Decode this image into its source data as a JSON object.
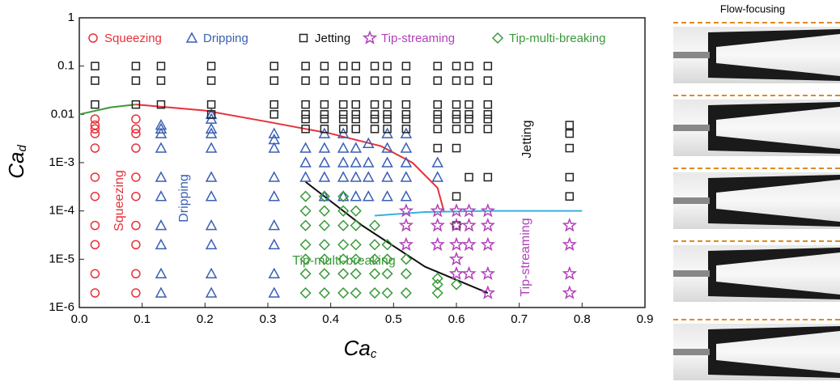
{
  "chart_data": {
    "type": "scatter",
    "log_y": true,
    "xlabel": "Ca",
    "xlabel_sub": "c",
    "ylabel": "Ca",
    "ylabel_sub": "d",
    "xlim": [
      0,
      0.9
    ],
    "ylim": [
      1e-06,
      1
    ],
    "xticks": [
      {
        "value": 0,
        "label": "0.0"
      },
      0.1,
      0.2,
      0.3,
      0.4,
      0.5,
      0.6,
      0.7,
      0.8,
      0.9
    ],
    "yticks": [
      {
        "value": 1e-06,
        "label": "1E-6"
      },
      {
        "value": 1e-05,
        "label": "1E-5"
      },
      {
        "value": 0.0001,
        "label": "1E-4"
      },
      {
        "value": 0.001,
        "label": "1E-3"
      },
      0.01,
      0.1,
      1
    ],
    "series": [
      {
        "name": "Squeezing",
        "color": "#e8313a",
        "marker": "circle",
        "x": [
          0.025,
          0.025,
          0.025,
          0.025,
          0.025,
          0.025,
          0.025,
          0.025,
          0.025,
          0.025,
          0.025,
          0.09,
          0.09,
          0.09,
          0.09,
          0.09,
          0.09,
          0.09,
          0.09,
          0.09,
          0.09
        ],
        "values": [
          0.008,
          0.006,
          0.005,
          0.004,
          0.002,
          0.0005,
          0.0002,
          5e-05,
          2e-05,
          5e-06,
          2e-06,
          0.008,
          0.005,
          0.004,
          0.002,
          0.0005,
          0.0002,
          5e-05,
          2e-05,
          5e-06,
          2e-06
        ]
      },
      {
        "name": "Dripping",
        "color": "#3a5fb5",
        "marker": "triangle",
        "x": [
          0.13,
          0.13,
          0.13,
          0.13,
          0.13,
          0.13,
          0.13,
          0.13,
          0.13,
          0.13,
          0.21,
          0.21,
          0.21,
          0.21,
          0.21,
          0.21,
          0.21,
          0.21,
          0.21,
          0.21,
          0.21,
          0.31,
          0.31,
          0.31,
          0.31,
          0.31,
          0.31,
          0.31,
          0.31,
          0.31,
          0.36,
          0.36,
          0.36,
          0.39,
          0.39,
          0.39,
          0.39,
          0.39,
          0.42,
          0.42,
          0.42,
          0.42,
          0.42,
          0.44,
          0.44,
          0.44,
          0.44,
          0.46,
          0.46,
          0.46,
          0.46,
          0.49,
          0.49,
          0.49,
          0.49,
          0.49,
          0.52,
          0.52,
          0.52,
          0.52,
          0.52,
          0.57,
          0.57
        ],
        "values": [
          0.006,
          0.005,
          0.004,
          0.002,
          0.0005,
          0.0002,
          5e-05,
          2e-05,
          5e-06,
          2e-06,
          0.01,
          0.008,
          0.005,
          0.004,
          0.002,
          0.0005,
          0.0002,
          5e-05,
          2e-05,
          5e-06,
          2e-06,
          0.004,
          0.003,
          0.002,
          0.0005,
          0.0002,
          5e-05,
          2e-05,
          5e-06,
          2e-06,
          0.002,
          0.001,
          0.0005,
          0.004,
          0.002,
          0.001,
          0.0005,
          0.0002,
          0.004,
          0.002,
          0.001,
          0.0005,
          0.0002,
          0.002,
          0.001,
          0.0005,
          0.0002,
          0.0025,
          0.001,
          0.0005,
          0.0002,
          0.004,
          0.002,
          0.001,
          0.0005,
          0.0002,
          0.004,
          0.002,
          0.001,
          0.0005,
          0.0002,
          0.001,
          0.0005
        ]
      },
      {
        "name": "Jetting",
        "color": "#222222",
        "marker": "square",
        "x": [
          0.025,
          0.025,
          0.025,
          0.09,
          0.09,
          0.09,
          0.13,
          0.13,
          0.13,
          0.21,
          0.21,
          0.21,
          0.21,
          0.31,
          0.31,
          0.31,
          0.31,
          0.36,
          0.36,
          0.36,
          0.36,
          0.36,
          0.36,
          0.39,
          0.39,
          0.39,
          0.39,
          0.39,
          0.39,
          0.42,
          0.42,
          0.42,
          0.42,
          0.42,
          0.42,
          0.44,
          0.44,
          0.44,
          0.44,
          0.44,
          0.44,
          0.47,
          0.47,
          0.47,
          0.47,
          0.47,
          0.47,
          0.49,
          0.49,
          0.49,
          0.49,
          0.49,
          0.49,
          0.52,
          0.52,
          0.52,
          0.52,
          0.52,
          0.52,
          0.57,
          0.57,
          0.57,
          0.57,
          0.57,
          0.57,
          0.57,
          0.6,
          0.6,
          0.6,
          0.6,
          0.6,
          0.6,
          0.6,
          0.6,
          0.6,
          0.62,
          0.62,
          0.62,
          0.62,
          0.62,
          0.62,
          0.62,
          0.65,
          0.65,
          0.65,
          0.65,
          0.65,
          0.65,
          0.65,
          0.78,
          0.78,
          0.78,
          0.78,
          0.78
        ],
        "values": [
          0.1,
          0.05,
          0.016,
          0.1,
          0.05,
          0.016,
          0.1,
          0.05,
          0.016,
          0.1,
          0.05,
          0.016,
          0.01,
          0.1,
          0.05,
          0.016,
          0.01,
          0.1,
          0.05,
          0.016,
          0.01,
          0.008,
          0.005,
          0.1,
          0.05,
          0.016,
          0.01,
          0.008,
          0.005,
          0.1,
          0.05,
          0.016,
          0.01,
          0.008,
          0.005,
          0.1,
          0.05,
          0.016,
          0.01,
          0.008,
          0.005,
          0.1,
          0.05,
          0.016,
          0.01,
          0.008,
          0.005,
          0.1,
          0.05,
          0.016,
          0.01,
          0.008,
          0.005,
          0.1,
          0.05,
          0.016,
          0.01,
          0.008,
          0.005,
          0.1,
          0.05,
          0.016,
          0.01,
          0.008,
          0.005,
          0.002,
          0.1,
          0.05,
          0.016,
          0.01,
          0.008,
          0.005,
          0.002,
          0.0002,
          5e-05,
          0.1,
          0.05,
          0.016,
          0.01,
          0.008,
          0.005,
          0.0005,
          0.1,
          0.05,
          0.016,
          0.01,
          0.008,
          0.005,
          0.0005,
          0.006,
          0.004,
          0.002,
          0.0005,
          0.0002
        ]
      },
      {
        "name": "Tip-streaming",
        "color": "#b040b8",
        "marker": "star",
        "x": [
          0.52,
          0.52,
          0.52,
          0.57,
          0.57,
          0.57,
          0.6,
          0.6,
          0.6,
          0.6,
          0.6,
          0.62,
          0.62,
          0.62,
          0.62,
          0.65,
          0.65,
          0.65,
          0.65,
          0.65,
          0.78,
          0.78,
          0.78,
          0.78
        ],
        "values": [
          0.0001,
          5e-05,
          2e-05,
          0.0001,
          5e-05,
          2e-05,
          0.0001,
          5e-05,
          2e-05,
          1e-05,
          5e-06,
          0.0001,
          5e-05,
          2e-05,
          5e-06,
          0.0001,
          5e-05,
          2e-05,
          5e-06,
          2e-06,
          5e-05,
          2e-05,
          5e-06,
          2e-06
        ]
      },
      {
        "name": "Tip-multi-breaking",
        "color": "#3a9a3a",
        "marker": "diamond",
        "x": [
          0.36,
          0.36,
          0.36,
          0.36,
          0.36,
          0.36,
          0.36,
          0.39,
          0.39,
          0.39,
          0.39,
          0.39,
          0.39,
          0.39,
          0.42,
          0.42,
          0.42,
          0.42,
          0.42,
          0.42,
          0.42,
          0.44,
          0.44,
          0.44,
          0.44,
          0.44,
          0.44,
          0.47,
          0.47,
          0.47,
          0.47,
          0.47,
          0.49,
          0.49,
          0.49,
          0.49,
          0.52,
          0.52,
          0.52,
          0.57,
          0.57,
          0.57,
          0.6
        ],
        "values": [
          0.0002,
          0.0001,
          5e-05,
          2e-05,
          1e-05,
          5e-06,
          2e-06,
          0.0002,
          0.0001,
          5e-05,
          2e-05,
          1e-05,
          5e-06,
          2e-06,
          0.0002,
          0.0001,
          5e-05,
          2e-05,
          1e-05,
          5e-06,
          2e-06,
          0.0001,
          5e-05,
          2e-05,
          1e-05,
          5e-06,
          2e-06,
          5e-05,
          2e-05,
          1e-05,
          5e-06,
          2e-06,
          2e-05,
          1e-05,
          5e-06,
          2e-06,
          1e-05,
          5e-06,
          2e-06,
          4e-06,
          3e-06,
          2e-06,
          3e-06
        ]
      }
    ],
    "curves": [
      {
        "color": "#3a9a3a",
        "x": [
          0,
          0.05,
          0.09
        ],
        "values": [
          0.01,
          0.014,
          0.016
        ]
      },
      {
        "color": "#e8313a",
        "x": [
          0.09,
          0.2,
          0.3,
          0.4,
          0.48,
          0.53,
          0.57,
          0.58
        ],
        "values": [
          0.016,
          0.012,
          0.007,
          0.004,
          0.0022,
          0.001,
          0.0003,
          0.0001
        ]
      },
      {
        "color": "#111111",
        "x": [
          0.36,
          0.45,
          0.55,
          0.65
        ],
        "values": [
          0.0004,
          5e-05,
          7e-06,
          2e-06
        ]
      },
      {
        "color": "#3ab0e0",
        "x": [
          0.47,
          0.55,
          0.65,
          0.8
        ],
        "values": [
          8e-05,
          9.5e-05,
          0.0001,
          0.0001
        ]
      }
    ],
    "annotations": [
      "Squeezing",
      "Dripping",
      "Jetting",
      "Tip-multi-breaking",
      "Tip-streaming"
    ]
  },
  "side_panel": {
    "title": "Flow-focusing"
  }
}
